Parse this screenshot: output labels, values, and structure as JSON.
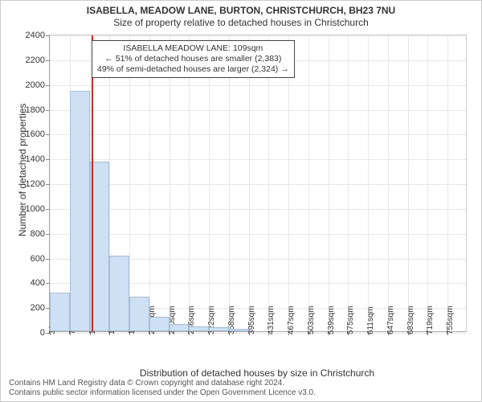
{
  "title_main": "ISABELLA, MEADOW LANE, BURTON, CHRISTCHURCH, BH23 7NU",
  "title_sub": "Size of property relative to detached houses in Christchurch",
  "axis": {
    "ylabel": "Number of detached properties",
    "xlabel": "Distribution of detached houses by size in Christchurch",
    "ylim": [
      0,
      2400
    ],
    "ytick_step": 200,
    "label_fontsize": 12
  },
  "x_categories": [
    "34sqm",
    "70sqm",
    "106sqm",
    "142sqm",
    "178sqm",
    "214sqm",
    "250sqm",
    "286sqm",
    "322sqm",
    "358sqm",
    "395sqm",
    "431sqm",
    "467sqm",
    "503sqm",
    "539sqm",
    "575sqm",
    "611sqm",
    "647sqm",
    "683sqm",
    "719sqm",
    "755sqm"
  ],
  "bars": {
    "values": [
      310,
      1940,
      1370,
      610,
      280,
      120,
      60,
      40,
      30,
      20
    ],
    "fill_color": "#cfe0f4",
    "border_color": "#a8bcd6",
    "bar_width_frac": 1.0
  },
  "reference_line": {
    "position_sqm": 109,
    "color": "#cc2b2b"
  },
  "annotation": {
    "line1": "ISABELLA MEADOW LANE: 109sqm",
    "line2": "← 51% of detached houses are smaller (2,383)",
    "line3": "49% of semi-detached houses are larger (2,324) →",
    "border_color": "#444444",
    "background": "#ffffff",
    "fontsize": 10.5
  },
  "style": {
    "background_color": "#ffffff",
    "grid_color": "#e8e8e8",
    "axis_color": "#aaaaaa",
    "tick_fontsize": 11
  },
  "footer": {
    "line1": "Contains HM Land Registry data © Crown copyright and database right 2024.",
    "line2": "Contains public sector information licensed under the Open Government Licence v3.0."
  },
  "chart_type": "histogram"
}
